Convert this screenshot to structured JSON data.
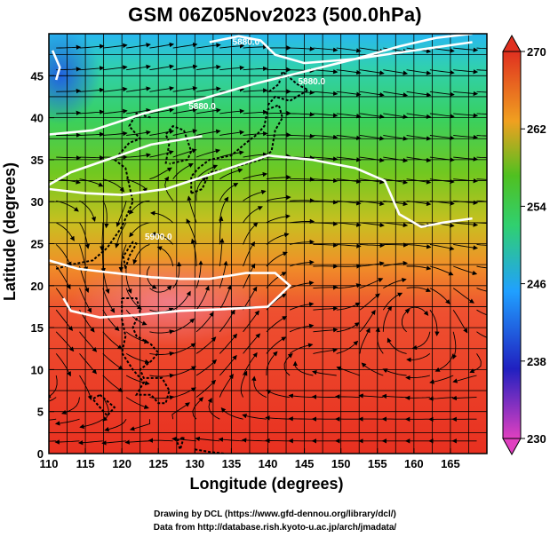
{
  "title": "GSM 06Z05Nov2023 (500.0hPa)",
  "x_axis": {
    "label": "Longitude (degrees)",
    "range": [
      110,
      170
    ],
    "ticks": [
      110,
      115,
      120,
      125,
      130,
      135,
      140,
      145,
      150,
      155,
      160,
      165
    ]
  },
  "y_axis": {
    "label": "Latitude (degrees)",
    "range": [
      0,
      50
    ],
    "ticks": [
      0,
      5,
      10,
      15,
      20,
      25,
      30,
      35,
      40,
      45
    ]
  },
  "colorbar": {
    "range": [
      230,
      270
    ],
    "ticks": [
      230,
      238,
      246,
      254,
      262,
      270
    ],
    "colors": [
      "#e040c0",
      "#2020c0",
      "#20a0ff",
      "#30d070",
      "#50c020",
      "#f0a020",
      "#e03020"
    ]
  },
  "contour_labels": [
    "5880.0",
    "5880.0",
    "5880.0",
    "5900.0"
  ],
  "credits": {
    "line1": "Drawing by DCL (https://www.gfd-dennou.org/library/dcl/)",
    "line2": "Data from http://database.rish.kyoto-u.ac.jp/arch/jmadata/"
  }
}
